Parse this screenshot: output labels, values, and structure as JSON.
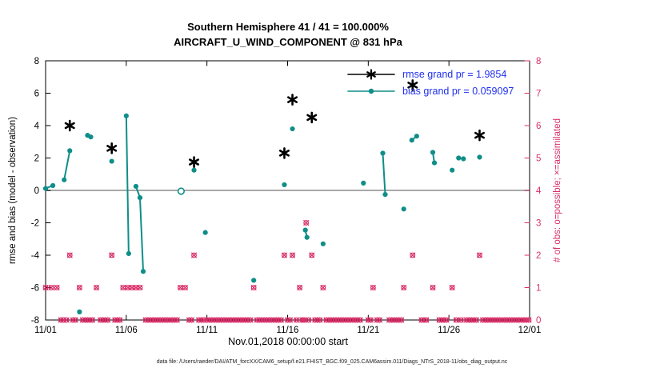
{
  "title": {
    "line1": "Southern Hemisphere 41 / 41 = 100.000%",
    "line2": "AIRCRAFT_U_WIND_COMPONENT @ 831 hPa"
  },
  "legend": {
    "rmse_label": "rmse grand pr = 1.9854",
    "bias_label": "bias grand pr = 0.059097",
    "text_color": "#2030f0"
  },
  "caption": "data file: /Users/raeder/DAI/ATM_forcXX/CAM6_setup/f.e21.FHIST_BGC.f09_025.CAM6assim.011/Diags_NTrS_2018-11/obs_diag_output.nc",
  "colors": {
    "rmse": "#000000",
    "bias": "#0f8e88",
    "obs": "#d9306b",
    "zero_line": "#a8a8a8",
    "frame": "#000000"
  },
  "chart_data": {
    "type": "scatter",
    "x_axis": {
      "label": "Nov.01,2018 00:00:00 start",
      "range_days": [
        0,
        30
      ],
      "tick_days": [
        0,
        5,
        10,
        15,
        20,
        25,
        30
      ],
      "tick_labels": [
        "11/01",
        "11/06",
        "11/11",
        "11/16",
        "11/21",
        "11/26",
        "12/01"
      ]
    },
    "y_left": {
      "label": "rmse and bias (model - observation)",
      "range": [
        -8,
        8
      ],
      "ticks": [
        -8,
        -6,
        -4,
        -2,
        0,
        2,
        4,
        6,
        8
      ]
    },
    "y_right": {
      "label": "# of obs: o=possible; ×=assimilated",
      "range": [
        0,
        8
      ],
      "ticks": [
        0,
        1,
        2,
        3,
        4,
        5,
        6,
        7,
        8
      ]
    },
    "zero_line_y": 0,
    "rmse_points": [
      [
        1.5,
        4.0
      ],
      [
        4.1,
        2.6
      ],
      [
        9.2,
        1.75
      ],
      [
        14.8,
        2.3
      ],
      [
        15.3,
        5.6
      ],
      [
        16.5,
        4.5
      ],
      [
        22.75,
        6.5
      ],
      [
        26.9,
        3.4
      ]
    ],
    "bias_segments": [
      [
        [
          0,
          0.12
        ],
        [
          0.45,
          0.3
        ]
      ],
      [
        [
          1.15,
          0.65
        ],
        [
          1.5,
          2.45
        ]
      ],
      [
        [
          2.1,
          -7.5
        ]
      ],
      [
        [
          2.6,
          3.4
        ],
        [
          2.8,
          3.3
        ]
      ],
      [
        [
          4.1,
          1.8
        ]
      ],
      [
        [
          5.0,
          4.6
        ],
        [
          5.15,
          -3.9
        ]
      ],
      [
        [
          5.6,
          0.25
        ],
        [
          5.85,
          -0.45
        ],
        [
          6.05,
          -5.0
        ]
      ],
      [
        [
          9.2,
          1.25
        ]
      ],
      [
        [
          9.9,
          -2.6
        ]
      ],
      [
        [
          12.9,
          -5.55
        ]
      ],
      [
        [
          14.8,
          0.35
        ]
      ],
      [
        [
          15.3,
          3.8
        ]
      ],
      [
        [
          16.1,
          -2.45
        ],
        [
          16.2,
          -2.9
        ]
      ],
      [
        [
          17.2,
          -3.3
        ]
      ],
      [
        [
          19.7,
          0.45
        ]
      ],
      [
        [
          20.9,
          2.3
        ],
        [
          21.05,
          -0.25
        ]
      ],
      [
        [
          22.2,
          -1.15
        ]
      ],
      [
        [
          22.7,
          3.1
        ],
        [
          23.0,
          3.35
        ]
      ],
      [
        [
          24.0,
          2.35
        ],
        [
          24.1,
          1.7
        ]
      ],
      [
        [
          25.2,
          1.25
        ]
      ],
      [
        [
          25.6,
          2.0
        ],
        [
          25.9,
          1.95
        ]
      ],
      [
        [
          26.9,
          2.05
        ]
      ]
    ],
    "bias_open_points": [
      [
        8.4,
        -0.05
      ]
    ],
    "obs_counts": {
      "count0_days": [
        0.95,
        1.1,
        1.3,
        1.7,
        1.85,
        2.3,
        2.45,
        2.6,
        2.75,
        2.9,
        3.4,
        3.55,
        3.7,
        3.85,
        4.3,
        4.45,
        4.6,
        6.2,
        6.35,
        6.5,
        6.65,
        6.8,
        6.95,
        7.1,
        7.25,
        7.4,
        7.55,
        7.7,
        7.85,
        8.0,
        8.15,
        8.9,
        9.05,
        9.5,
        9.65,
        9.8,
        10.0,
        10.15,
        10.3,
        10.45,
        10.6,
        10.75,
        10.9,
        11.05,
        11.2,
        11.35,
        11.5,
        11.65,
        11.8,
        11.95,
        12.1,
        12.25,
        12.4,
        12.55,
        12.7,
        13.1,
        13.25,
        13.4,
        13.55,
        13.7,
        13.85,
        14.0,
        14.15,
        14.3,
        14.45,
        14.6,
        15.0,
        15.15,
        15.55,
        15.9,
        16.0,
        16.3,
        16.7,
        16.85,
        17.0,
        17.4,
        17.55,
        17.7,
        17.85,
        18.0,
        18.15,
        18.3,
        18.45,
        18.6,
        18.75,
        18.9,
        19.05,
        19.2,
        19.35,
        19.5,
        20.0,
        20.15,
        20.55,
        20.7,
        21.3,
        21.45,
        21.6,
        21.75,
        21.9,
        22.05,
        23.3,
        23.45,
        23.6,
        24.4,
        24.55,
        24.7,
        24.85,
        25.45,
        25.75,
        26.1,
        26.25,
        26.4,
        26.55,
        26.7,
        27.1,
        27.25,
        27.4,
        27.55,
        27.7,
        27.85,
        28.0,
        28.15,
        28.3,
        28.45,
        28.6,
        28.75,
        28.9,
        29.05,
        29.2,
        29.35,
        29.5,
        29.65,
        29.8,
        29.95
      ],
      "count1_days": [
        0,
        0.35,
        0.7,
        2.1,
        3.15,
        4.8,
        5.1,
        5.35,
        5.6,
        5.85,
        8.35,
        8.65,
        12.9,
        15.75,
        17.2,
        20.3,
        22.2,
        24.0,
        25.2
      ],
      "count2_days": [
        1.5,
        4.1,
        9.2,
        14.8,
        15.3,
        16.5,
        22.75,
        26.9
      ],
      "count3_days": [
        16.15
      ]
    }
  }
}
